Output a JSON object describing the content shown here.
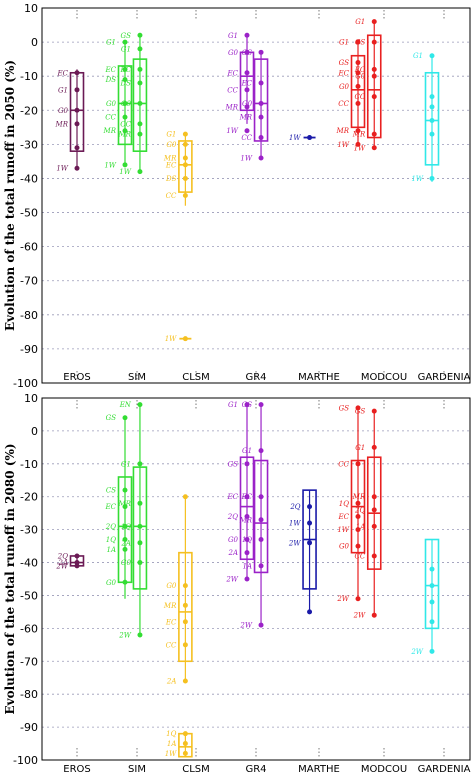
{
  "chart_data": [
    {
      "type": "box",
      "ylabel": "Evolution of  the total runoff in 2050 (%)",
      "ylim": [
        -100,
        10
      ],
      "yticks": [
        10,
        0,
        -10,
        -20,
        -30,
        -40,
        -50,
        -60,
        -70,
        -80,
        -90,
        -100
      ],
      "categories": [
        "EROS",
        "SIM",
        "CLSM",
        "GR4",
        "MARTHE",
        "MODCOU",
        "GARDENIA"
      ],
      "grid": true,
      "colors": {
        "EROS": "#6b1a55",
        "SIM": "#33dd33",
        "CLSM": "#f5c020",
        "GR4": "#9b22c8",
        "MARTHE": "#1a1aa8",
        "MODCOU": "#e82020",
        "GARDENIA": "#30e8e8"
      },
      "series": [
        {
          "model": "EROS",
          "boxes": [
            {
              "x": 1.0,
              "q1": -32,
              "median": -20,
              "q3": -9,
              "min": -37,
              "max": -8,
              "points": [
                {
                  "y": -9,
                  "label": "EC"
                },
                {
                  "y": -14,
                  "label": "G1"
                },
                {
                  "y": -20,
                  "label": "G0"
                },
                {
                  "y": -24,
                  "label": "MR"
                },
                {
                  "y": -31,
                  "label": ""
                },
                {
                  "y": -37,
                  "label": "1W"
                }
              ]
            }
          ]
        },
        {
          "model": "SIM",
          "boxes": [
            {
              "x": 1.8,
              "q1": -30,
              "median": -18,
              "q3": -7,
              "min": -36,
              "max": 0,
              "points": [
                {
                  "y": 0,
                  "label": "G1"
                },
                {
                  "y": -8,
                  "label": "EC"
                },
                {
                  "y": -11,
                  "label": "DS"
                },
                {
                  "y": -18,
                  "label": "G0"
                },
                {
                  "y": -22,
                  "label": "CC"
                },
                {
                  "y": -26,
                  "label": "MR"
                },
                {
                  "y": -36,
                  "label": "1W"
                }
              ]
            },
            {
              "x": 2.05,
              "q1": -32,
              "median": -18,
              "q3": -5,
              "min": -38,
              "max": 2,
              "points": [
                {
                  "y": 2,
                  "label": "GS"
                },
                {
                  "y": -2,
                  "label": "G1"
                },
                {
                  "y": -8,
                  "label": "EC"
                },
                {
                  "y": -12,
                  "label": "DS"
                },
                {
                  "y": -18,
                  "label": "G0"
                },
                {
                  "y": -24,
                  "label": "CC"
                },
                {
                  "y": -27,
                  "label": "MR"
                },
                {
                  "y": -38,
                  "label": "1W"
                }
              ]
            }
          ]
        },
        {
          "model": "CLSM",
          "boxes": [
            {
              "x": 2.82,
              "q1": -44,
              "median": -36,
              "q3": -29,
              "min": -48,
              "max": -27,
              "points": [
                {
                  "y": -27,
                  "label": "G1"
                },
                {
                  "y": -30,
                  "label": "G0"
                },
                {
                  "y": -34,
                  "label": "MR"
                },
                {
                  "y": -36,
                  "label": "EC"
                },
                {
                  "y": -40,
                  "label": "DS"
                },
                {
                  "y": -45,
                  "label": "CC"
                }
              ]
            },
            {
              "x": 2.82,
              "q1": -87,
              "median": -87,
              "q3": -87,
              "min": -87,
              "max": -87,
              "points": [
                {
                  "y": -87,
                  "label": "1W"
                }
              ]
            }
          ]
        },
        {
          "model": "GR4",
          "boxes": [
            {
              "x": 3.85,
              "q1": -20,
              "median": -10,
              "q3": -3,
              "min": -24,
              "max": 2,
              "points": [
                {
                  "y": 2,
                  "label": "G1"
                },
                {
                  "y": -3,
                  "label": "G0"
                },
                {
                  "y": -9,
                  "label": "EC"
                },
                {
                  "y": -14,
                  "label": "CC"
                },
                {
                  "y": -19,
                  "label": "MR"
                },
                {
                  "y": -26,
                  "label": "1W"
                }
              ]
            },
            {
              "x": 4.08,
              "q1": -29,
              "median": -18,
              "q3": -5,
              "min": -34,
              "max": -3,
              "points": [
                {
                  "y": -3,
                  "label": "GS"
                },
                {
                  "y": -12,
                  "label": "EC"
                },
                {
                  "y": -18,
                  "label": "G0"
                },
                {
                  "y": -22,
                  "label": "MR"
                },
                {
                  "y": -28,
                  "label": "CC"
                },
                {
                  "y": -34,
                  "label": "1W"
                }
              ]
            }
          ]
        },
        {
          "model": "MARTHE",
          "boxes": [
            {
              "x": 4.85,
              "q1": -28,
              "median": -28,
              "q3": -28,
              "min": -28,
              "max": -28,
              "points": [
                {
                  "y": -28,
                  "label": "1W"
                }
              ]
            }
          ]
        },
        {
          "model": "MODCOU",
          "boxes": [
            {
              "x": 5.6,
              "q1": -25,
              "median": -14,
              "q3": -4,
              "min": -30,
              "max": 0,
              "points": [
                {
                  "y": 0,
                  "label": "G1"
                },
                {
                  "y": -6,
                  "label": "GS"
                },
                {
                  "y": -9,
                  "label": "EC"
                },
                {
                  "y": -13,
                  "label": "G0"
                },
                {
                  "y": -18,
                  "label": "CC"
                },
                {
                  "y": -26,
                  "label": "MR"
                },
                {
                  "y": -30,
                  "label": "1W"
                }
              ]
            },
            {
              "x": 5.85,
              "q1": -28,
              "median": -14,
              "q3": 2,
              "min": -31,
              "max": 6,
              "points": [
                {
                  "y": 6,
                  "label": "G1"
                },
                {
                  "y": 0,
                  "label": "GS"
                },
                {
                  "y": -8,
                  "label": "EC"
                },
                {
                  "y": -10,
                  "label": "G0"
                },
                {
                  "y": -16,
                  "label": "CC"
                },
                {
                  "y": -27,
                  "label": "MR"
                },
                {
                  "y": -31,
                  "label": "1W"
                }
              ]
            }
          ]
        },
        {
          "model": "GARDENIA",
          "boxes": [
            {
              "x": 6.8,
              "q1": -36,
              "median": -23,
              "q3": -9,
              "min": -41,
              "max": -4,
              "points": [
                {
                  "y": -4,
                  "label": "G1"
                },
                {
                  "y": -16,
                  "label": ""
                },
                {
                  "y": -19,
                  "label": ""
                },
                {
                  "y": -23,
                  "label": ""
                },
                {
                  "y": -27,
                  "label": ""
                },
                {
                  "y": -40,
                  "label": "1W"
                }
              ]
            }
          ]
        }
      ]
    },
    {
      "type": "box",
      "ylabel": "Evolution of the total runoff in 2080 (%)",
      "ylim": [
        -100,
        10
      ],
      "yticks": [
        10,
        0,
        -10,
        -20,
        -30,
        -40,
        -50,
        -60,
        -70,
        -80,
        -90,
        -100
      ],
      "categories": [
        "EROS",
        "SIM",
        "CLSM",
        "GR4",
        "MARTHE",
        "MODCOU",
        "GARDENIA"
      ],
      "grid": true,
      "colors": {
        "EROS": "#6b1a55",
        "SIM": "#33dd33",
        "CLSM": "#f5c020",
        "GR4": "#9b22c8",
        "MARTHE": "#1a1aa8",
        "MODCOU": "#e82020",
        "GARDENIA": "#30e8e8"
      },
      "series": [
        {
          "model": "EROS",
          "boxes": [
            {
              "x": 1.0,
              "q1": -41,
              "median": -40,
              "q3": -38,
              "min": -41,
              "max": -38,
              "points": [
                {
                  "y": -38,
                  "label": "2Q"
                },
                {
                  "y": -40,
                  "label": "2A"
                },
                {
                  "y": -41,
                  "label": "2W"
                }
              ]
            }
          ]
        },
        {
          "model": "SIM",
          "boxes": [
            {
              "x": 1.8,
              "q1": -46,
              "median": -29,
              "q3": -14,
              "min": -51,
              "max": 4,
              "points": [
                {
                  "y": 4,
                  "label": "GS"
                },
                {
                  "y": -18,
                  "label": "CS"
                },
                {
                  "y": -23,
                  "label": "EC"
                },
                {
                  "y": -29,
                  "label": "2Q"
                },
                {
                  "y": -33,
                  "label": "1Q"
                },
                {
                  "y": -36,
                  "label": "1A"
                },
                {
                  "y": -46,
                  "label": "G0"
                }
              ]
            },
            {
              "x": 2.05,
              "q1": -48,
              "median": -29,
              "q3": -11,
              "min": -62,
              "max": 8,
              "points": [
                {
                  "y": 8,
                  "label": "EN"
                },
                {
                  "y": -10,
                  "label": "G1"
                },
                {
                  "y": -22,
                  "label": "MR"
                },
                {
                  "y": -29,
                  "label": "1Q"
                },
                {
                  "y": -34,
                  "label": "2A"
                },
                {
                  "y": -40,
                  "label": "G0"
                },
                {
                  "y": -62,
                  "label": "2W"
                }
              ]
            }
          ]
        },
        {
          "model": "CLSM",
          "boxes": [
            {
              "x": 2.82,
              "q1": -70,
              "median": -55,
              "q3": -37,
              "min": -76,
              "max": -20,
              "points": [
                {
                  "y": -20,
                  "label": ""
                },
                {
                  "y": -47,
                  "label": "G0"
                },
                {
                  "y": -53,
                  "label": "MR"
                },
                {
                  "y": -58,
                  "label": "EC"
                },
                {
                  "y": -65,
                  "label": "CC"
                },
                {
                  "y": -76,
                  "label": "2A"
                }
              ]
            },
            {
              "x": 2.82,
              "q1": -99,
              "median": -96,
              "q3": -92,
              "min": -99,
              "max": -92,
              "points": [
                {
                  "y": -92,
                  "label": "1Q"
                },
                {
                  "y": -95,
                  "label": "1A"
                },
                {
                  "y": -98,
                  "label": "1W"
                }
              ]
            }
          ]
        },
        {
          "model": "GR4",
          "boxes": [
            {
              "x": 3.85,
              "q1": -39,
              "median": -23,
              "q3": -8,
              "min": -45,
              "max": 8,
              "points": [
                {
                  "y": 8,
                  "label": "G1"
                },
                {
                  "y": -10,
                  "label": "GS"
                },
                {
                  "y": -20,
                  "label": "EC"
                },
                {
                  "y": -26,
                  "label": "2Q"
                },
                {
                  "y": -33,
                  "label": "G0"
                },
                {
                  "y": -37,
                  "label": "2A"
                },
                {
                  "y": -45,
                  "label": "2W"
                }
              ]
            },
            {
              "x": 4.08,
              "q1": -43,
              "median": -28,
              "q3": -9,
              "min": -59,
              "max": 8,
              "points": [
                {
                  "y": 8,
                  "label": "GS"
                },
                {
                  "y": -6,
                  "label": "G1"
                },
                {
                  "y": -20,
                  "label": "EC"
                },
                {
                  "y": -27,
                  "label": "MR"
                },
                {
                  "y": -33,
                  "label": "1Q"
                },
                {
                  "y": -41,
                  "label": "1A"
                },
                {
                  "y": -59,
                  "label": "2W"
                }
              ]
            }
          ]
        },
        {
          "model": "MARTHE",
          "boxes": [
            {
              "x": 4.85,
              "q1": -48,
              "median": -33,
              "q3": -18,
              "min": -55,
              "max": -18,
              "points": [
                {
                  "y": -23,
                  "label": "2Q"
                },
                {
                  "y": -28,
                  "label": "1W"
                },
                {
                  "y": -34,
                  "label": "2W"
                },
                {
                  "y": -55,
                  "label": ""
                }
              ]
            }
          ]
        },
        {
          "model": "MODCOU",
          "boxes": [
            {
              "x": 5.6,
              "q1": -37,
              "median": -23,
              "q3": -9,
              "min": -51,
              "max": 7,
              "points": [
                {
                  "y": 7,
                  "label": "GS"
                },
                {
                  "y": -10,
                  "label": "CC"
                },
                {
                  "y": -22,
                  "label": "1Q"
                },
                {
                  "y": -26,
                  "label": "EC"
                },
                {
                  "y": -30,
                  "label": "1W"
                },
                {
                  "y": -35,
                  "label": "G0"
                },
                {
                  "y": -51,
                  "label": "2W"
                }
              ]
            },
            {
              "x": 5.85,
              "q1": -42,
              "median": -25,
              "q3": -8,
              "min": -56,
              "max": 6,
              "points": [
                {
                  "y": 6,
                  "label": "GS"
                },
                {
                  "y": -5,
                  "label": "G1"
                },
                {
                  "y": -20,
                  "label": "MR"
                },
                {
                  "y": -24,
                  "label": "2Q"
                },
                {
                  "y": -29,
                  "label": "1A"
                },
                {
                  "y": -38,
                  "label": "CC"
                },
                {
                  "y": -56,
                  "label": "2W"
                }
              ]
            }
          ]
        },
        {
          "model": "GARDENIA",
          "boxes": [
            {
              "x": 6.8,
              "q1": -60,
              "median": -47,
              "q3": -33,
              "min": -67,
              "max": -33,
              "points": [
                {
                  "y": -42,
                  "label": ""
                },
                {
                  "y": -47,
                  "label": ""
                },
                {
                  "y": -52,
                  "label": ""
                },
                {
                  "y": -58,
                  "label": ""
                },
                {
                  "y": -67,
                  "label": "2W"
                }
              ]
            }
          ]
        }
      ]
    }
  ]
}
